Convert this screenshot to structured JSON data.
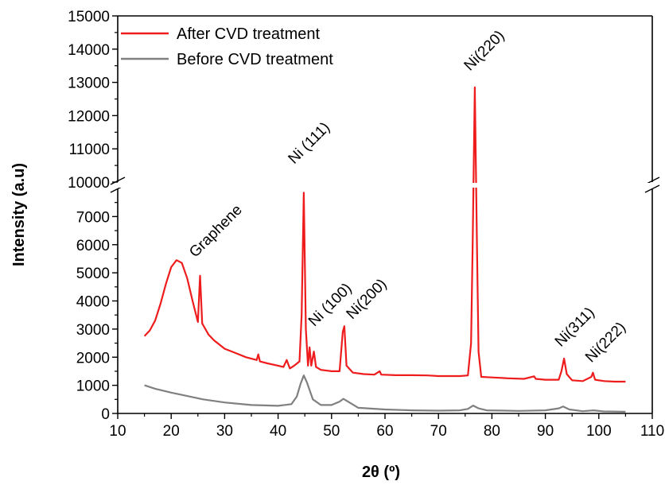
{
  "chart_data": {
    "type": "line",
    "xlabel": "2θ (º)",
    "ylabel": "Intensity (a.u)",
    "xlim": [
      10,
      110
    ],
    "x_ticks": [
      10,
      20,
      30,
      40,
      50,
      60,
      70,
      80,
      90,
      100,
      110
    ],
    "y_break": {
      "lower_range": [
        0,
        8000
      ],
      "upper_range": [
        10000,
        15000
      ]
    },
    "y_ticks_lower": [
      0,
      1000,
      2000,
      3000,
      4000,
      5000,
      6000,
      7000
    ],
    "y_ticks_upper": [
      10000,
      11000,
      12000,
      13000,
      14000,
      15000
    ],
    "legend_position": "top-left",
    "grid": false,
    "series": [
      {
        "name": "After CVD treatment",
        "color": "#ee1c1c",
        "points": [
          [
            15,
            2750
          ],
          [
            16,
            2950
          ],
          [
            17,
            3300
          ],
          [
            18,
            3900
          ],
          [
            19,
            4600
          ],
          [
            20,
            5200
          ],
          [
            21,
            5450
          ],
          [
            22,
            5350
          ],
          [
            23,
            4800
          ],
          [
            24,
            4000
          ],
          [
            25,
            3250
          ],
          [
            25.4,
            4900
          ],
          [
            25.8,
            3200
          ],
          [
            27,
            2800
          ],
          [
            28,
            2600
          ],
          [
            30,
            2300
          ],
          [
            32,
            2150
          ],
          [
            34,
            2000
          ],
          [
            36,
            1900
          ],
          [
            36.3,
            2100
          ],
          [
            36.6,
            1850
          ],
          [
            38,
            1780
          ],
          [
            40,
            1700
          ],
          [
            41,
            1650
          ],
          [
            41.6,
            1900
          ],
          [
            42.2,
            1600
          ],
          [
            43,
            1700
          ],
          [
            44,
            1850
          ],
          [
            44.4,
            3500
          ],
          [
            44.8,
            7850
          ],
          [
            45.2,
            3000
          ],
          [
            45.6,
            1700
          ],
          [
            45.9,
            2350
          ],
          [
            46.2,
            1700
          ],
          [
            46.7,
            2200
          ],
          [
            47.1,
            1650
          ],
          [
            48,
            1550
          ],
          [
            50,
            1500
          ],
          [
            51.5,
            1500
          ],
          [
            52.1,
            2900
          ],
          [
            52.4,
            3100
          ],
          [
            52.8,
            1700
          ],
          [
            54,
            1450
          ],
          [
            56,
            1400
          ],
          [
            58,
            1380
          ],
          [
            59,
            1500
          ],
          [
            59.3,
            1380
          ],
          [
            62,
            1360
          ],
          [
            65,
            1360
          ],
          [
            68,
            1350
          ],
          [
            70,
            1330
          ],
          [
            72,
            1330
          ],
          [
            74,
            1330
          ],
          [
            75.5,
            1350
          ],
          [
            76.1,
            2500
          ],
          [
            76.4,
            6000
          ],
          [
            76.8,
            12850
          ],
          [
            77.2,
            6000
          ],
          [
            77.5,
            2200
          ],
          [
            78,
            1300
          ],
          [
            80,
            1280
          ],
          [
            83,
            1250
          ],
          [
            86,
            1230
          ],
          [
            87.9,
            1320
          ],
          [
            88.2,
            1230
          ],
          [
            90,
            1200
          ],
          [
            92.5,
            1200
          ],
          [
            93,
            1500
          ],
          [
            93.5,
            1950
          ],
          [
            94,
            1400
          ],
          [
            95,
            1180
          ],
          [
            97,
            1150
          ],
          [
            98.6,
            1300
          ],
          [
            98.9,
            1450
          ],
          [
            99.3,
            1200
          ],
          [
            101,
            1150
          ],
          [
            103,
            1130
          ],
          [
            105,
            1130
          ]
        ]
      },
      {
        "name": "Before CVD treatment",
        "color": "#808080",
        "points": [
          [
            15,
            1000
          ],
          [
            17,
            880
          ],
          [
            20,
            740
          ],
          [
            23,
            620
          ],
          [
            26,
            500
          ],
          [
            30,
            390
          ],
          [
            35,
            300
          ],
          [
            40,
            270
          ],
          [
            42.5,
            330
          ],
          [
            43.5,
            600
          ],
          [
            44.2,
            1050
          ],
          [
            44.8,
            1350
          ],
          [
            45.4,
            1100
          ],
          [
            46.5,
            500
          ],
          [
            48,
            300
          ],
          [
            50,
            300
          ],
          [
            51.5,
            420
          ],
          [
            52.2,
            520
          ],
          [
            53,
            430
          ],
          [
            55,
            200
          ],
          [
            60,
            140
          ],
          [
            65,
            110
          ],
          [
            70,
            100
          ],
          [
            74,
            110
          ],
          [
            75.5,
            160
          ],
          [
            76.5,
            280
          ],
          [
            77.5,
            180
          ],
          [
            79,
            110
          ],
          [
            85,
            90
          ],
          [
            90,
            110
          ],
          [
            92.5,
            180
          ],
          [
            93.3,
            250
          ],
          [
            94.5,
            140
          ],
          [
            97,
            80
          ],
          [
            99,
            110
          ],
          [
            101,
            70
          ],
          [
            105,
            60
          ]
        ]
      }
    ],
    "annotations": [
      {
        "text": "Graphene",
        "x": 25.4,
        "y": 4900
      },
      {
        "text": "Ni (111)",
        "x": 44.8,
        "y": 10000
      },
      {
        "text": "Ni (100)",
        "x": 46.2,
        "y": 2900
      },
      {
        "text": "Ni(200)",
        "x": 52.4,
        "y": 3100
      },
      {
        "text": "Ni(220)",
        "x": 76.8,
        "y": 12850
      },
      {
        "text": "Ni(311)",
        "x": 93.5,
        "y": 1950
      },
      {
        "text": "Ni(222)",
        "x": 98.9,
        "y": 1450
      }
    ]
  }
}
